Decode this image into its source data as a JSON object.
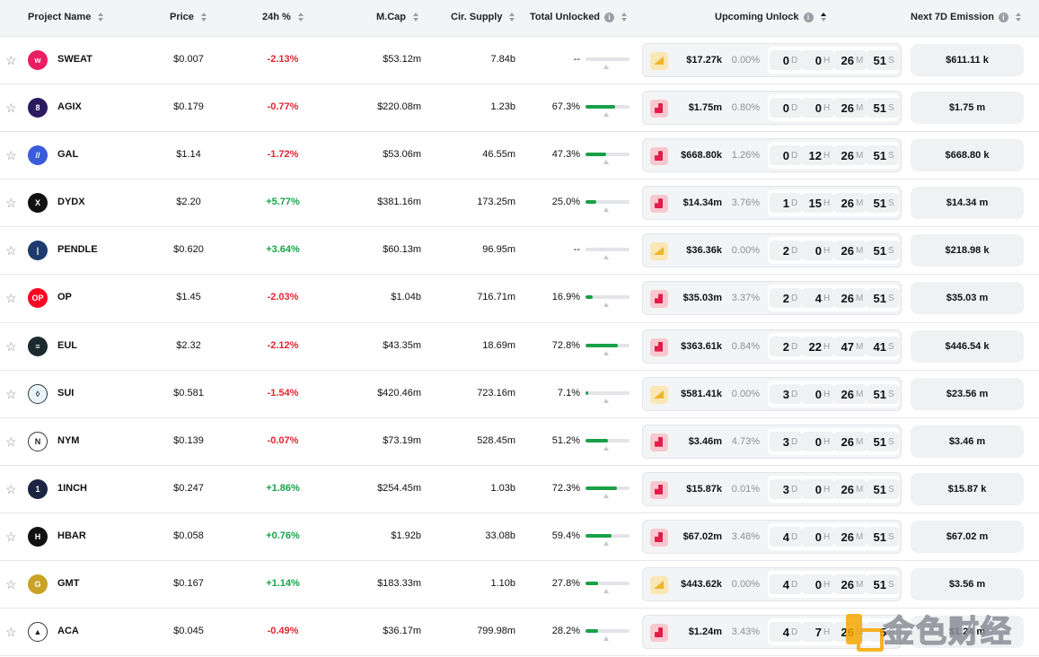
{
  "header": {
    "project_name": "Project Name",
    "price": "Price",
    "change_24h": "24h %",
    "mcap": "M.Cap",
    "supply": "Cir. Supply",
    "total_unlocked": "Total Unlocked",
    "upcoming_unlock": "Upcoming Unlock",
    "next_emission": "Next 7D Emission"
  },
  "timer_units": {
    "d": "D",
    "h": "H",
    "m": "M",
    "s": "S"
  },
  "rows": [
    {
      "symbol": "SWEAT",
      "logo_color": "#e91e63",
      "logo_glyph": "w",
      "price": "$0.007",
      "change": "-2.13%",
      "dir": "neg",
      "mcap": "$53.12m",
      "supply": "7.84b",
      "unlocked": "--",
      "unlocked_frac": 0,
      "icon": "yellow",
      "amount": "$17.27k",
      "pct": "0.00%",
      "d": "0",
      "h": "0",
      "m": "26",
      "s": "51",
      "emission": "$611.11 k"
    },
    {
      "symbol": "AGIX",
      "logo_color": "#2a1a5e",
      "logo_glyph": "8",
      "price": "$0.179",
      "change": "-0.77%",
      "dir": "neg",
      "mcap": "$220.08m",
      "supply": "1.23b",
      "unlocked": "67.3%",
      "unlocked_frac": 0.673,
      "icon": "red",
      "amount": "$1.75m",
      "pct": "0.80%",
      "d": "0",
      "h": "0",
      "m": "26",
      "s": "51",
      "emission": "$1.75 m"
    },
    {
      "symbol": "GAL",
      "logo_color": "#3b5bdb",
      "logo_glyph": "//",
      "price": "$1.14",
      "change": "-1.72%",
      "dir": "neg",
      "mcap": "$53.06m",
      "supply": "46.55m",
      "unlocked": "47.3%",
      "unlocked_frac": 0.473,
      "icon": "red",
      "amount": "$668.80k",
      "pct": "1.26%",
      "d": "0",
      "h": "12",
      "m": "26",
      "s": "51",
      "emission": "$668.80 k"
    },
    {
      "symbol": "DYDX",
      "logo_color": "#111111",
      "logo_glyph": "X",
      "price": "$2.20",
      "change": "+5.77%",
      "dir": "pos",
      "mcap": "$381.16m",
      "supply": "173.25m",
      "unlocked": "25.0%",
      "unlocked_frac": 0.25,
      "icon": "red",
      "amount": "$14.34m",
      "pct": "3.76%",
      "d": "1",
      "h": "15",
      "m": "26",
      "s": "51",
      "emission": "$14.34 m"
    },
    {
      "symbol": "PENDLE",
      "logo_color": "#1e3a6e",
      "logo_glyph": "|",
      "price": "$0.620",
      "change": "+3.64%",
      "dir": "pos",
      "mcap": "$60.13m",
      "supply": "96.95m",
      "unlocked": "--",
      "unlocked_frac": 0,
      "icon": "yellow",
      "amount": "$36.36k",
      "pct": "0.00%",
      "d": "2",
      "h": "0",
      "m": "26",
      "s": "51",
      "emission": "$218.98 k"
    },
    {
      "symbol": "OP",
      "logo_color": "#ff0420",
      "logo_glyph": "OP",
      "price": "$1.45",
      "change": "-2.03%",
      "dir": "neg",
      "mcap": "$1.04b",
      "supply": "716.71m",
      "unlocked": "16.9%",
      "unlocked_frac": 0.169,
      "icon": "red",
      "amount": "$35.03m",
      "pct": "3.37%",
      "d": "2",
      "h": "4",
      "m": "26",
      "s": "51",
      "emission": "$35.03 m"
    },
    {
      "symbol": "EUL",
      "logo_color": "#1b2a2f",
      "logo_glyph": "≡",
      "price": "$2.32",
      "change": "-2.12%",
      "dir": "neg",
      "mcap": "$43.35m",
      "supply": "18.69m",
      "unlocked": "72.8%",
      "unlocked_frac": 0.728,
      "icon": "red",
      "amount": "$363.61k",
      "pct": "0.84%",
      "d": "2",
      "h": "22",
      "m": "47",
      "s": "41",
      "emission": "$446.54 k"
    },
    {
      "symbol": "SUI",
      "logo_color": "#e8f4fd",
      "logo_glyph": "◊",
      "price": "$0.581",
      "change": "-1.54%",
      "dir": "neg",
      "mcap": "$420.46m",
      "supply": "723.16m",
      "unlocked": "7.1%",
      "unlocked_frac": 0.071,
      "icon": "yellow",
      "amount": "$581.41k",
      "pct": "0.00%",
      "d": "3",
      "h": "0",
      "m": "26",
      "s": "51",
      "emission": "$23.56 m"
    },
    {
      "symbol": "NYM",
      "logo_color": "#ffffff",
      "logo_glyph": "N",
      "price": "$0.139",
      "change": "-0.07%",
      "dir": "neg",
      "mcap": "$73.19m",
      "supply": "528.45m",
      "unlocked": "51.2%",
      "unlocked_frac": 0.512,
      "icon": "red",
      "amount": "$3.46m",
      "pct": "4.73%",
      "d": "3",
      "h": "0",
      "m": "26",
      "s": "51",
      "emission": "$3.46 m"
    },
    {
      "symbol": "1INCH",
      "logo_color": "#1b2440",
      "logo_glyph": "1",
      "price": "$0.247",
      "change": "+1.86%",
      "dir": "pos",
      "mcap": "$254.45m",
      "supply": "1.03b",
      "unlocked": "72.3%",
      "unlocked_frac": 0.723,
      "icon": "red",
      "amount": "$15.87k",
      "pct": "0.01%",
      "d": "3",
      "h": "0",
      "m": "26",
      "s": "51",
      "emission": "$15.87 k"
    },
    {
      "symbol": "HBAR",
      "logo_color": "#111111",
      "logo_glyph": "H",
      "price": "$0.058",
      "change": "+0.76%",
      "dir": "pos",
      "mcap": "$1.92b",
      "supply": "33.08b",
      "unlocked": "59.4%",
      "unlocked_frac": 0.594,
      "icon": "red",
      "amount": "$67.02m",
      "pct": "3.48%",
      "d": "4",
      "h": "0",
      "m": "26",
      "s": "51",
      "emission": "$67.02 m"
    },
    {
      "symbol": "GMT",
      "logo_color": "#c9a227",
      "logo_glyph": "G",
      "price": "$0.167",
      "change": "+1.14%",
      "dir": "pos",
      "mcap": "$183.33m",
      "supply": "1.10b",
      "unlocked": "27.8%",
      "unlocked_frac": 0.278,
      "icon": "yellow",
      "amount": "$443.62k",
      "pct": "0.00%",
      "d": "4",
      "h": "0",
      "m": "26",
      "s": "51",
      "emission": "$3.56 m"
    },
    {
      "symbol": "ACA",
      "logo_color": "#ffffff",
      "logo_glyph": "▲",
      "price": "$0.045",
      "change": "-0.49%",
      "dir": "neg",
      "mcap": "$36.17m",
      "supply": "799.98m",
      "unlocked": "28.2%",
      "unlocked_frac": 0.282,
      "icon": "red",
      "amount": "$1.24m",
      "pct": "3.43%",
      "d": "4",
      "h": "7",
      "m": "26",
      "s": "5",
      "emission": "$1.24 m"
    }
  ],
  "watermark": {
    "text": "金色财经"
  }
}
